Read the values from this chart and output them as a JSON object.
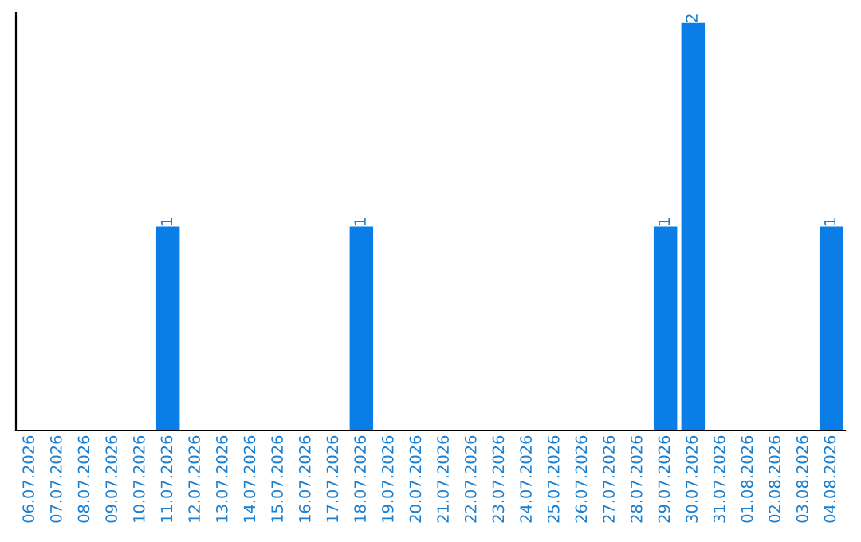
{
  "chart_data": {
    "type": "bar",
    "categories": [
      "06.07.2026",
      "07.07.2026",
      "08.07.2026",
      "09.07.2026",
      "10.07.2026",
      "11.07.2026",
      "12.07.2026",
      "13.07.2026",
      "14.07.2026",
      "15.07.2026",
      "16.07.2026",
      "17.07.2026",
      "18.07.2026",
      "19.07.2026",
      "20.07.2026",
      "21.07.2026",
      "22.07.2026",
      "23.07.2026",
      "24.07.2026",
      "25.07.2026",
      "26.07.2026",
      "27.07.2026",
      "28.07.2026",
      "29.07.2026",
      "30.07.2026",
      "31.07.2026",
      "01.08.2026",
      "02.08.2026",
      "03.08.2026",
      "04.08.2026"
    ],
    "values": [
      0,
      0,
      0,
      0,
      0,
      1,
      0,
      0,
      0,
      0,
      0,
      0,
      1,
      0,
      0,
      0,
      0,
      0,
      0,
      0,
      0,
      0,
      0,
      1,
      2,
      0,
      0,
      0,
      0,
      1
    ],
    "color": "#0a7ee6",
    "ylim": [
      0,
      2.05
    ],
    "tick_labels": "x",
    "value_labels": [
      null,
      null,
      null,
      null,
      null,
      "1",
      null,
      null,
      null,
      null,
      null,
      null,
      "1",
      null,
      null,
      null,
      null,
      null,
      null,
      null,
      null,
      null,
      null,
      "1",
      "2",
      null,
      null,
      null,
      null,
      "1"
    ],
    "grid": false,
    "legend": false
  }
}
